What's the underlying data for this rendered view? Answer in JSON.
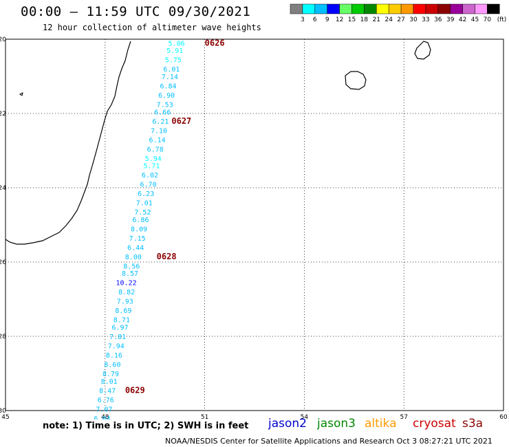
{
  "title": "00:00 – 11:59 UTC 09/30/2021",
  "subtitle": "12 hour collection of altimeter wave heights",
  "color_scale": {
    "colors": [
      "#808080",
      "#00ffff",
      "#00bfff",
      "#0000ff",
      "#66ff66",
      "#00cc00",
      "#008800",
      "#ffff00",
      "#ffcc00",
      "#ff9900",
      "#ff0000",
      "#cc0000",
      "#8b0000",
      "#990099",
      "#cc66cc",
      "#ff99ff",
      "#000000"
    ],
    "labels": [
      "3",
      "6",
      "9",
      "12",
      "15",
      "18",
      "21",
      "24",
      "27",
      "30",
      "33",
      "36",
      "39",
      "42",
      "45",
      "70"
    ],
    "unit": "(ft)"
  },
  "map": {
    "lon_range": [
      45,
      60
    ],
    "lat_range": [
      -30,
      -20
    ],
    "lon_ticks": [
      "45",
      "48",
      "51",
      "54",
      "57",
      "60"
    ],
    "lat_ticks": [
      "-20",
      "-22",
      "-24",
      "-26",
      "-28",
      "-30"
    ],
    "grid": "dotted",
    "coastline_color": "#000000"
  },
  "track": {
    "satellite": "jason3",
    "observations": [
      {
        "lat": -20.1,
        "lon": 50.4,
        "swh": "5.06",
        "color": "#00ffff"
      },
      {
        "lat": -20.3,
        "lon": 50.35,
        "swh": "5.91",
        "color": "#00ffff"
      },
      {
        "lat": -20.55,
        "lon": 50.3,
        "swh": "5.75",
        "color": "#00ffff"
      },
      {
        "lat": -20.8,
        "lon": 50.25,
        "swh": "6.01",
        "color": "#00bfff"
      },
      {
        "lat": -21.0,
        "lon": 50.2,
        "swh": "7.14",
        "color": "#00bfff"
      },
      {
        "lat": -21.25,
        "lon": 50.15,
        "swh": "6.84",
        "color": "#00bfff"
      },
      {
        "lat": -21.5,
        "lon": 50.1,
        "swh": "6.90",
        "color": "#00bfff"
      },
      {
        "lat": -21.75,
        "lon": 50.05,
        "swh": "7.53",
        "color": "#00bfff"
      },
      {
        "lat": -21.95,
        "lon": 49.98,
        "swh": "6.66",
        "color": "#00bfff"
      },
      {
        "lat": -22.2,
        "lon": 49.92,
        "swh": "6.21",
        "color": "#00bfff"
      },
      {
        "lat": -22.45,
        "lon": 49.87,
        "swh": "7.10",
        "color": "#00bfff"
      },
      {
        "lat": -22.7,
        "lon": 49.82,
        "swh": "6.14",
        "color": "#00bfff"
      },
      {
        "lat": -22.95,
        "lon": 49.76,
        "swh": "6.78",
        "color": "#00bfff"
      },
      {
        "lat": -23.2,
        "lon": 49.7,
        "swh": "5.94",
        "color": "#00ffff"
      },
      {
        "lat": -23.4,
        "lon": 49.65,
        "swh": "5.71",
        "color": "#00ffff"
      },
      {
        "lat": -23.65,
        "lon": 49.6,
        "swh": "6.02",
        "color": "#00bfff"
      },
      {
        "lat": -23.9,
        "lon": 49.55,
        "swh": "6.70",
        "color": "#00bfff"
      },
      {
        "lat": -24.15,
        "lon": 49.48,
        "swh": "6.23",
        "color": "#00bfff"
      },
      {
        "lat": -24.4,
        "lon": 49.43,
        "swh": "7.01",
        "color": "#00bfff"
      },
      {
        "lat": -24.65,
        "lon": 49.38,
        "swh": "7.52",
        "color": "#00bfff"
      },
      {
        "lat": -24.85,
        "lon": 49.32,
        "swh": "6.86",
        "color": "#00bfff"
      },
      {
        "lat": -25.1,
        "lon": 49.27,
        "swh": "8.09",
        "color": "#00bfff"
      },
      {
        "lat": -25.35,
        "lon": 49.22,
        "swh": "7.15",
        "color": "#00bfff"
      },
      {
        "lat": -25.6,
        "lon": 49.17,
        "swh": "6.44",
        "color": "#00bfff"
      },
      {
        "lat": -25.85,
        "lon": 49.1,
        "swh": "8.00",
        "color": "#00bfff"
      },
      {
        "lat": -26.1,
        "lon": 49.05,
        "swh": "8.56",
        "color": "#00bfff"
      },
      {
        "lat": -26.3,
        "lon": 49.0,
        "swh": "8.57",
        "color": "#00bfff"
      },
      {
        "lat": -26.55,
        "lon": 48.95,
        "swh": "10.22",
        "color": "#0000ff"
      },
      {
        "lat": -26.8,
        "lon": 48.9,
        "swh": "8.82",
        "color": "#00bfff"
      },
      {
        "lat": -27.05,
        "lon": 48.85,
        "swh": "7.93",
        "color": "#00bfff"
      },
      {
        "lat": -27.3,
        "lon": 48.8,
        "swh": "8.69",
        "color": "#00bfff"
      },
      {
        "lat": -27.55,
        "lon": 48.75,
        "swh": "8.71",
        "color": "#00bfff"
      },
      {
        "lat": -27.75,
        "lon": 48.7,
        "swh": "6.97",
        "color": "#00bfff"
      },
      {
        "lat": -28.0,
        "lon": 48.63,
        "swh": "7.81",
        "color": "#00bfff"
      },
      {
        "lat": -28.25,
        "lon": 48.58,
        "swh": "7.94",
        "color": "#00bfff"
      },
      {
        "lat": -28.5,
        "lon": 48.52,
        "swh": "8.16",
        "color": "#00bfff"
      },
      {
        "lat": -28.75,
        "lon": 48.47,
        "swh": "8.60",
        "color": "#00bfff"
      },
      {
        "lat": -29.0,
        "lon": 48.42,
        "swh": "8.79",
        "color": "#00bfff"
      },
      {
        "lat": -29.2,
        "lon": 48.37,
        "swh": "8.01",
        "color": "#00bfff"
      },
      {
        "lat": -29.45,
        "lon": 48.32,
        "swh": "8.47",
        "color": "#00bfff"
      },
      {
        "lat": -29.7,
        "lon": 48.27,
        "swh": "6.76",
        "color": "#00bfff"
      },
      {
        "lat": -29.95,
        "lon": 48.22,
        "swh": "7.07",
        "color": "#00bfff"
      },
      {
        "lat": -30.2,
        "lon": 48.16,
        "swh": "6.04",
        "color": "#00bfff"
      }
    ],
    "time_marks": [
      {
        "lat": -20.1,
        "lon": 51.6,
        "time": "0626"
      },
      {
        "lat": -22.2,
        "lon": 50.6,
        "time": "0627"
      },
      {
        "lat": -25.85,
        "lon": 50.15,
        "time": "0628"
      },
      {
        "lat": -29.45,
        "lon": 49.2,
        "time": "0629"
      }
    ]
  },
  "note": "note: 1) Time is in UTC; 2) SWH is in feet",
  "satellites": [
    {
      "name": "jason2",
      "color": "#0000cc"
    },
    {
      "name": "jason3",
      "color": "#008800"
    },
    {
      "name": "altika",
      "color": "#ff9900"
    },
    {
      "name": "cryosat",
      "color": "#cc0000"
    },
    {
      "name": "s3a",
      "color": "#8b0000"
    }
  ],
  "footer": "NOAA/NESDIS Center for Satellite Applications and Research    Oct  3 08:27:21 UTC 2021"
}
